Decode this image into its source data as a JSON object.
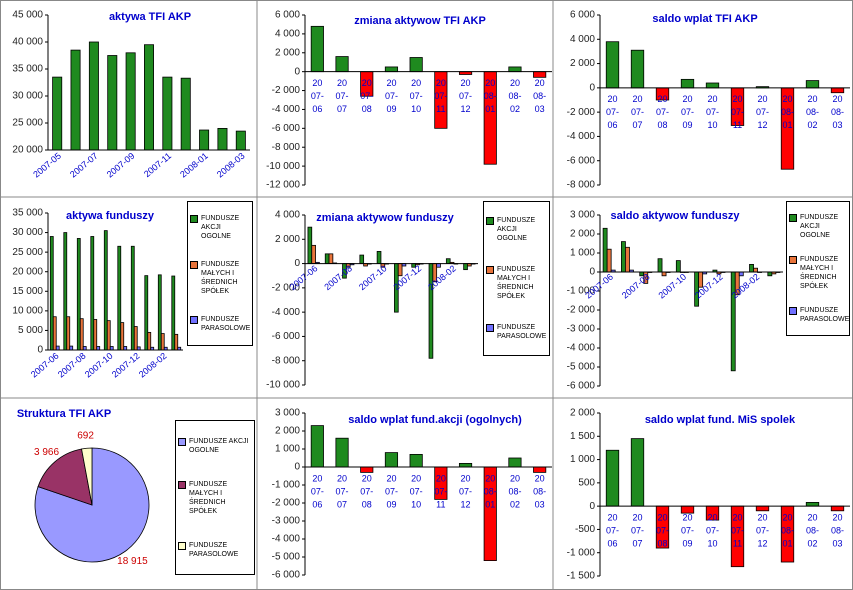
{
  "chart_data": [
    {
      "type": "bar",
      "title": "aktywa TFI AKP",
      "categories": [
        "2007-05",
        null,
        "2007-07",
        null,
        "2007-09",
        null,
        "2007-11",
        null,
        "2008-01",
        null,
        "2008-03"
      ],
      "values": [
        33500,
        38500,
        40000,
        37500,
        38000,
        39500,
        33500,
        33300,
        23700,
        24000,
        23500
      ],
      "color": "#1f8a1f",
      "ylim": [
        20000,
        45000
      ],
      "yticks": [
        {
          "value": 20000,
          "label": "20 000"
        },
        {
          "value": 25000,
          "label": "25 000"
        },
        {
          "value": 30000,
          "label": "30 000"
        },
        {
          "value": 35000,
          "label": "35 000"
        },
        {
          "value": 40000,
          "label": "40 000"
        },
        {
          "value": 45000,
          "label": "45 000"
        }
      ]
    },
    {
      "type": "bar",
      "title": "zmiana aktywow TFI AKP",
      "categories": [
        [
          "20",
          "07-",
          "06"
        ],
        [
          "20",
          "07-",
          "07"
        ],
        [
          "20",
          "07-",
          "08"
        ],
        [
          "20",
          "07-",
          "09"
        ],
        [
          "20",
          "07-",
          "10"
        ],
        [
          "20",
          "07-",
          "11"
        ],
        [
          "20",
          "07-",
          "12"
        ],
        [
          "20",
          "08-",
          "01"
        ],
        [
          "20",
          "08-",
          "02"
        ],
        [
          "20",
          "08-",
          "03"
        ]
      ],
      "values": [
        4800,
        1600,
        -2600,
        500,
        1500,
        -6000,
        -300,
        -9800,
        500,
        -600
      ],
      "color": "#1f8a1f",
      "negative_color": "#ff0000",
      "ylim": [
        -12000,
        6000
      ],
      "yticks": [
        {
          "value": 6000,
          "label": "6 000"
        },
        {
          "value": 4000,
          "label": "4 000"
        },
        {
          "value": 2000,
          "label": "2 000"
        },
        0,
        {
          "value": -2000,
          "label": "-2 000"
        },
        {
          "value": -4000,
          "label": "-4 000"
        },
        {
          "value": -6000,
          "label": "-6 000"
        },
        {
          "value": -8000,
          "label": "-8 000"
        },
        {
          "value": -10000,
          "label": "-10 000"
        },
        {
          "value": -12000,
          "label": "-12 000"
        }
      ]
    },
    {
      "type": "bar",
      "title": "saldo wplat TFI AKP",
      "categories": [
        [
          "20",
          "07-",
          "06"
        ],
        [
          "20",
          "07-",
          "07"
        ],
        [
          "20",
          "07-",
          "08"
        ],
        [
          "20",
          "07-",
          "09"
        ],
        [
          "20",
          "07-",
          "10"
        ],
        [
          "20",
          "07-",
          "11"
        ],
        [
          "20",
          "07-",
          "12"
        ],
        [
          "20",
          "08-",
          "01"
        ],
        [
          "20",
          "08-",
          "02"
        ],
        [
          "20",
          "08-",
          "03"
        ]
      ],
      "values": [
        3800,
        3100,
        -1000,
        700,
        400,
        -3100,
        100,
        -6700,
        600,
        -400
      ],
      "color": "#1f8a1f",
      "negative_color": "#ff0000",
      "ylim": [
        -8000,
        6000
      ],
      "yticks": [
        {
          "value": 6000,
          "label": "6 000"
        },
        {
          "value": 4000,
          "label": "4 000"
        },
        {
          "value": 2000,
          "label": "2 000"
        },
        0,
        {
          "value": -2000,
          "label": "-2 000"
        },
        {
          "value": -4000,
          "label": "-4 000"
        },
        {
          "value": -6000,
          "label": "-6 000"
        },
        {
          "value": -8000,
          "label": "-8 000"
        }
      ]
    },
    {
      "type": "bar",
      "title": "aktywa funduszy",
      "categories": [
        "2007-06",
        null,
        "2007-08",
        null,
        "2007-10",
        null,
        "2007-12",
        null,
        "2008-02",
        null
      ],
      "series": [
        {
          "name": "FUNDUSZE AKCJI OGOLNE",
          "color": "#1f8a1f",
          "values": [
            29000,
            30000,
            28500,
            29000,
            30500,
            26500,
            26500,
            19000,
            19200,
            18900
          ]
        },
        {
          "name": "FUNDUSZE MAŁYCH I ŚREDNICH SPÓŁEK",
          "color": "#e8743b",
          "values": [
            8500,
            8500,
            8000,
            7800,
            7500,
            7000,
            6000,
            4500,
            4200,
            4000
          ]
        },
        {
          "name": "FUNDUSZE PARASOLOWE",
          "color": "#7070ff",
          "values": [
            1000,
            1000,
            900,
            900,
            900,
            900,
            800,
            700,
            700,
            700
          ]
        }
      ],
      "ylim": [
        0,
        35000
      ],
      "yticks": [
        0,
        {
          "value": 5000,
          "label": "5 000"
        },
        {
          "value": 10000,
          "label": "10 000"
        },
        {
          "value": 15000,
          "label": "15 000"
        },
        {
          "value": 20000,
          "label": "20 000"
        },
        {
          "value": 25000,
          "label": "25 000"
        },
        {
          "value": 30000,
          "label": "30 000"
        },
        {
          "value": 35000,
          "label": "35 000"
        }
      ]
    },
    {
      "type": "bar",
      "title": "zmiana aktywow funduszy",
      "categories": [
        "2007-06",
        null,
        "2007-08",
        null,
        "2007-10",
        null,
        "2007-12",
        null,
        "2008-02",
        null
      ],
      "series": [
        {
          "name": "FUNDUSZE AKCJI OGOLNE",
          "color": "#1f8a1f",
          "values": [
            3000,
            800,
            -1200,
            700,
            1000,
            -4000,
            -300,
            -7800,
            400,
            -500
          ]
        },
        {
          "name": "FUNDUSZE MAŁYCH I ŚREDNICH SPÓŁEK",
          "color": "#e8743b",
          "values": [
            1500,
            800,
            -300,
            -200,
            -300,
            -1000,
            -100,
            -1500,
            100,
            -200
          ]
        },
        {
          "name": "FUNDUSZE PARASOLOWE",
          "color": "#7070ff",
          "values": [
            100,
            50,
            -100,
            0,
            0,
            -200,
            0,
            -300,
            0,
            0
          ]
        }
      ],
      "ylim": [
        -10000,
        4000
      ],
      "yticks": [
        {
          "value": 4000,
          "label": "4 000"
        },
        {
          "value": 2000,
          "label": "2 000"
        },
        0,
        {
          "value": -2000,
          "label": "-2 000"
        },
        {
          "value": -4000,
          "label": "-4 000"
        },
        {
          "value": -6000,
          "label": "-6 000"
        },
        {
          "value": -8000,
          "label": "-8 000"
        },
        {
          "value": -10000,
          "label": "-10 000"
        }
      ]
    },
    {
      "type": "bar",
      "title": "saldo aktywow funduszy",
      "categories": [
        "2007-06",
        null,
        "2007-08",
        null,
        "2007-10",
        null,
        "2007-12",
        null,
        "2008-02",
        null
      ],
      "series": [
        {
          "name": "FUNDUSZE AKCJI OGOLNE",
          "color": "#1f8a1f",
          "values": [
            2300,
            1600,
            -200,
            700,
            600,
            -1800,
            100,
            -5200,
            400,
            -200
          ]
        },
        {
          "name": "FUNDUSZE MAŁYCH I ŚREDNICH SPÓŁEK",
          "color": "#e8743b",
          "values": [
            1200,
            1300,
            -600,
            -200,
            0,
            -800,
            -100,
            -1200,
            200,
            -100
          ]
        },
        {
          "name": "FUNDUSZE PARASOLOWE",
          "color": "#7070ff",
          "values": [
            100,
            100,
            0,
            0,
            0,
            -100,
            0,
            -200,
            0,
            0
          ]
        }
      ],
      "ylim": [
        -6000,
        3000
      ],
      "yticks": [
        {
          "value": 3000,
          "label": "3 000"
        },
        {
          "value": 2000,
          "label": "2 000"
        },
        {
          "value": 1000,
          "label": "1 000"
        },
        0,
        {
          "value": -1000,
          "label": "-1 000"
        },
        {
          "value": -2000,
          "label": "-2 000"
        },
        {
          "value": -3000,
          "label": "-3 000"
        },
        {
          "value": -4000,
          "label": "-4 000"
        },
        {
          "value": -5000,
          "label": "-5 000"
        },
        {
          "value": -6000,
          "label": "-6 000"
        }
      ]
    },
    {
      "type": "pie",
      "title": "Struktura TFI AKP",
      "categories": [
        "FUNDUSZE AKCJI OGOLNE",
        "FUNDUSZE MAŁYCH I ŚREDNICH SPÓŁEK",
        "FUNDUSZE PARASOLOWE"
      ],
      "values": [
        18915,
        3966,
        692
      ],
      "value_labels": [
        "18 915",
        "3 966",
        "692"
      ],
      "colors": [
        "#9999ff",
        "#993366",
        "#ffffcc"
      ]
    },
    {
      "type": "bar",
      "title": "saldo wplat fund.akcji (ogolnych)",
      "categories": [
        [
          "20",
          "07-",
          "06"
        ],
        [
          "20",
          "07-",
          "07"
        ],
        [
          "20",
          "07-",
          "08"
        ],
        [
          "20",
          "07-",
          "09"
        ],
        [
          "20",
          "07-",
          "10"
        ],
        [
          "20",
          "07-",
          "11"
        ],
        [
          "20",
          "07-",
          "12"
        ],
        [
          "20",
          "08-",
          "01"
        ],
        [
          "20",
          "08-",
          "02"
        ],
        [
          "20",
          "08-",
          "03"
        ]
      ],
      "values": [
        2300,
        1600,
        -300,
        800,
        700,
        -1800,
        200,
        -5200,
        500,
        -300
      ],
      "color": "#1f8a1f",
      "negative_color": "#ff0000",
      "ylim": [
        -6000,
        3000
      ],
      "yticks": [
        {
          "value": 3000,
          "label": "3 000"
        },
        {
          "value": 2000,
          "label": "2 000"
        },
        {
          "value": 1000,
          "label": "1 000"
        },
        0,
        {
          "value": -1000,
          "label": "-1 000"
        },
        {
          "value": -2000,
          "label": "-2 000"
        },
        {
          "value": -3000,
          "label": "-3 000"
        },
        {
          "value": -4000,
          "label": "-4 000"
        },
        {
          "value": -5000,
          "label": "-5 000"
        },
        {
          "value": -6000,
          "label": "-6 000"
        }
      ]
    },
    {
      "type": "bar",
      "title": "saldo wplat fund. MiS spolek",
      "categories": [
        [
          "20",
          "07-",
          "06"
        ],
        [
          "20",
          "07-",
          "07"
        ],
        [
          "20",
          "07-",
          "08"
        ],
        [
          "20",
          "07-",
          "09"
        ],
        [
          "20",
          "07-",
          "10"
        ],
        [
          "20",
          "07-",
          "11"
        ],
        [
          "20",
          "07-",
          "12"
        ],
        [
          "20",
          "08-",
          "01"
        ],
        [
          "20",
          "08-",
          "02"
        ],
        [
          "20",
          "08-",
          "03"
        ]
      ],
      "values": [
        1200,
        1450,
        -900,
        -150,
        -300,
        -1300,
        -100,
        -1200,
        80,
        -100
      ],
      "color": "#1f8a1f",
      "negative_color": "#ff0000",
      "ylim": [
        -1500,
        2000
      ],
      "yticks": [
        {
          "value": 2000,
          "label": "2 000"
        },
        {
          "value": 1500,
          "label": "1 500"
        },
        {
          "value": 1000,
          "label": "1 000"
        },
        500,
        0,
        -500,
        {
          "value": -1000,
          "label": "-1 000"
        },
        {
          "value": -1500,
          "label": "-1 500"
        }
      ]
    }
  ]
}
